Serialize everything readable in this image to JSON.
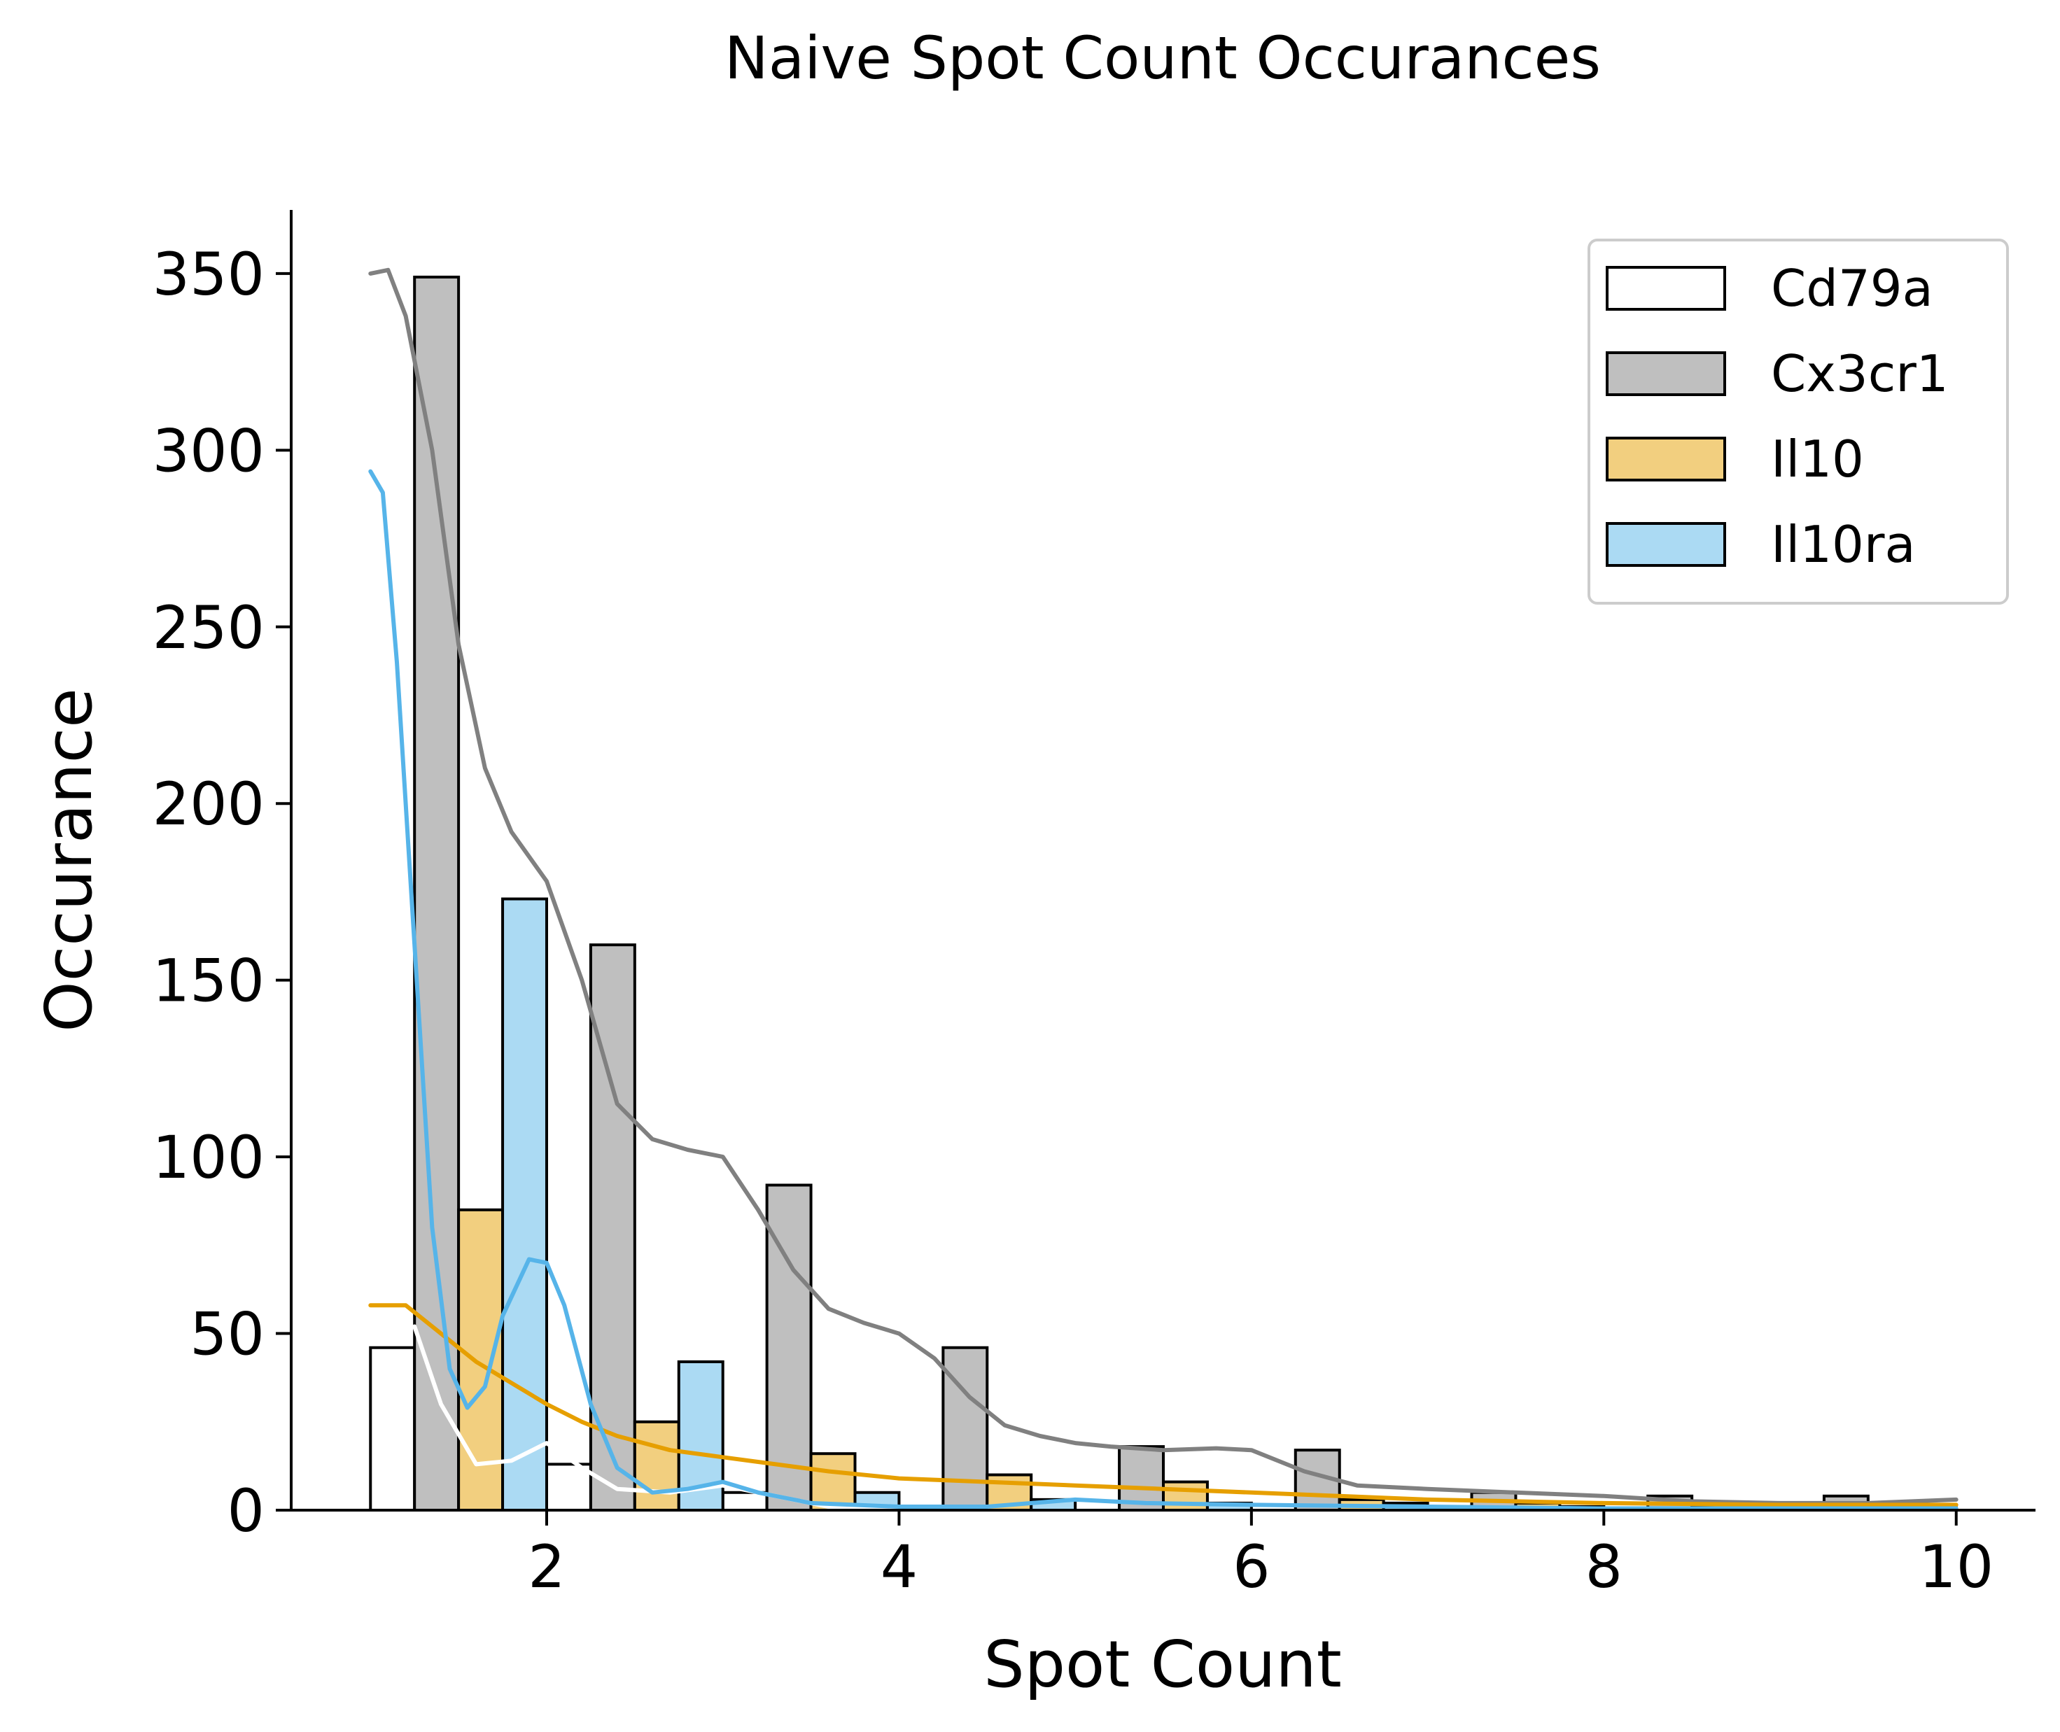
{
  "chart_data": {
    "type": "bar",
    "title": "Naive Spot Count Occurances",
    "xlabel": "Spot Count",
    "ylabel": "Occurance",
    "xlim": [
      0.55,
      10.45
    ],
    "ylim": [
      0,
      368
    ],
    "xticks": [
      2,
      4,
      6,
      8,
      10
    ],
    "yticks": [
      0,
      50,
      100,
      150,
      200,
      250,
      300,
      350
    ],
    "grid": false,
    "legend_position": "top-right",
    "bin_starts": [
      1,
      2,
      3,
      4,
      5,
      6,
      7,
      8,
      9
    ],
    "bin_width": 1,
    "series": [
      {
        "name": "Cd79a",
        "fill": "#ffffff",
        "kde_color": "#ffffff",
        "values": [
          46,
          13,
          5,
          1,
          0,
          0,
          0,
          0,
          0
        ],
        "kde": [
          [
            1.25,
            52
          ],
          [
            1.4,
            30
          ],
          [
            1.6,
            13
          ],
          [
            1.8,
            14
          ],
          [
            2.0,
            19
          ],
          [
            2.2,
            12
          ],
          [
            2.4,
            6
          ],
          [
            2.7,
            5
          ],
          [
            3.0,
            7
          ],
          [
            3.3,
            4
          ],
          [
            3.6,
            1
          ],
          [
            4.0,
            0.5
          ],
          [
            4.5,
            0.3
          ]
        ]
      },
      {
        "name": "Cx3cr1",
        "fill": "#bfbfbf",
        "kde_color": "#808080",
        "values": [
          349,
          160,
          92,
          46,
          18,
          17,
          5,
          4,
          4
        ],
        "kde": [
          [
            1.0,
            350
          ],
          [
            1.1,
            351
          ],
          [
            1.2,
            338
          ],
          [
            1.35,
            300
          ],
          [
            1.5,
            245
          ],
          [
            1.65,
            210
          ],
          [
            1.8,
            192
          ],
          [
            2.0,
            178
          ],
          [
            2.2,
            150
          ],
          [
            2.4,
            115
          ],
          [
            2.6,
            105
          ],
          [
            2.8,
            102
          ],
          [
            3.0,
            100
          ],
          [
            3.2,
            85
          ],
          [
            3.4,
            68
          ],
          [
            3.6,
            57
          ],
          [
            3.8,
            53
          ],
          [
            4.0,
            50
          ],
          [
            4.2,
            43
          ],
          [
            4.4,
            32
          ],
          [
            4.6,
            24
          ],
          [
            4.8,
            21
          ],
          [
            5.0,
            19
          ],
          [
            5.2,
            18
          ],
          [
            5.5,
            17
          ],
          [
            5.8,
            17.5
          ],
          [
            6.0,
            17
          ],
          [
            6.3,
            11
          ],
          [
            6.6,
            7
          ],
          [
            7.0,
            6
          ],
          [
            7.5,
            5
          ],
          [
            8.0,
            4
          ],
          [
            8.5,
            2.5
          ],
          [
            9.0,
            2
          ],
          [
            9.5,
            2
          ],
          [
            10.0,
            3
          ]
        ]
      },
      {
        "name": "Il10",
        "fill": "#f2cf7f",
        "kde_color": "#e69f00",
        "values": [
          85,
          25,
          16,
          10,
          8,
          3,
          2,
          1,
          1
        ],
        "kde": [
          [
            1.0,
            58
          ],
          [
            1.2,
            58
          ],
          [
            1.4,
            50
          ],
          [
            1.6,
            42
          ],
          [
            1.8,
            36
          ],
          [
            2.0,
            30
          ],
          [
            2.2,
            25
          ],
          [
            2.4,
            21
          ],
          [
            2.7,
            17
          ],
          [
            3.0,
            15
          ],
          [
            3.3,
            13
          ],
          [
            3.6,
            11
          ],
          [
            4.0,
            9
          ],
          [
            4.5,
            8
          ],
          [
            5.0,
            7
          ],
          [
            5.5,
            6
          ],
          [
            6.0,
            5
          ],
          [
            6.5,
            4
          ],
          [
            7.0,
            3
          ],
          [
            8.0,
            2
          ],
          [
            9.0,
            1.5
          ],
          [
            10.0,
            1.5
          ]
        ]
      },
      {
        "name": "Il10ra",
        "fill": "#abdaf3",
        "kde_color": "#56b4e9",
        "values": [
          173,
          42,
          5,
          3,
          2,
          2,
          1,
          1,
          1
        ],
        "kde": [
          [
            1.0,
            294
          ],
          [
            1.07,
            288
          ],
          [
            1.15,
            240
          ],
          [
            1.25,
            160
          ],
          [
            1.35,
            80
          ],
          [
            1.45,
            40
          ],
          [
            1.55,
            29
          ],
          [
            1.65,
            35
          ],
          [
            1.75,
            55
          ],
          [
            1.9,
            71
          ],
          [
            2.0,
            70
          ],
          [
            2.1,
            58
          ],
          [
            2.25,
            30
          ],
          [
            2.4,
            12
          ],
          [
            2.6,
            5
          ],
          [
            2.8,
            6
          ],
          [
            3.0,
            8
          ],
          [
            3.2,
            5
          ],
          [
            3.5,
            2
          ],
          [
            4.0,
            1
          ],
          [
            4.5,
            1
          ],
          [
            5.0,
            3
          ],
          [
            5.4,
            2
          ],
          [
            6.0,
            1.5
          ],
          [
            7.0,
            1
          ],
          [
            8.0,
            0.5
          ],
          [
            9.0,
            0.5
          ],
          [
            10.0,
            0.5
          ]
        ]
      }
    ]
  }
}
